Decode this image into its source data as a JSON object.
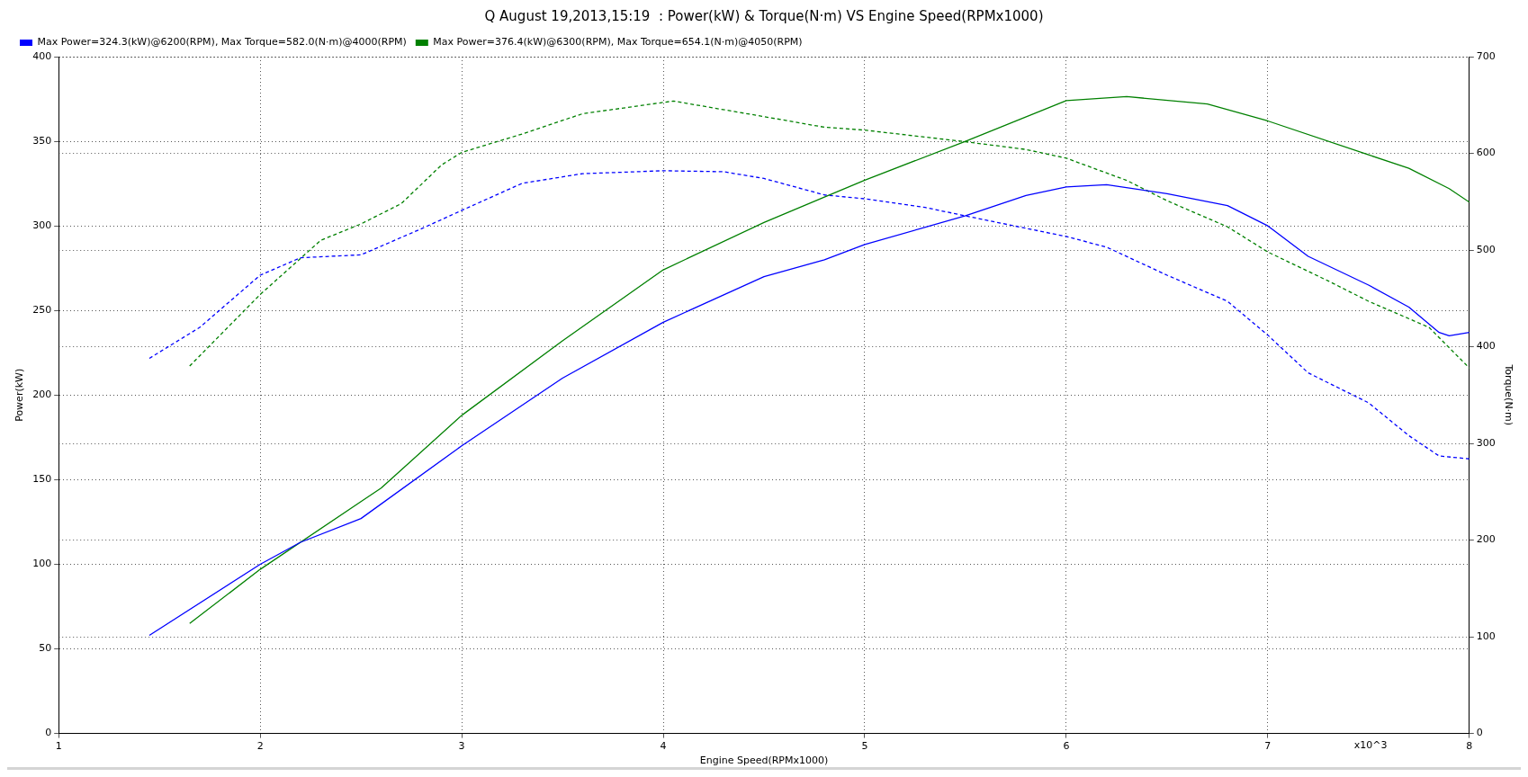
{
  "chart_data": {
    "type": "line",
    "title": "Q August 19,2013,15:19  : Power(kW) & Torque(N·m) VS Engine Speed(RPMx1000)",
    "xlabel": "Engine Speed(RPMx1000)",
    "ylabel": "Power(kW)",
    "y2label": "Torque(N·m)",
    "xlim": [
      1,
      8
    ],
    "xticks": [
      1,
      2,
      3,
      4,
      5,
      6,
      7,
      8
    ],
    "ylim": [
      0,
      400
    ],
    "yticks": [
      0,
      50,
      100,
      150,
      200,
      250,
      300,
      350,
      400
    ],
    "y2lim": [
      0,
      700
    ],
    "y2ticks": [
      0,
      100,
      200,
      300,
      400,
      500,
      600,
      700
    ],
    "grid": true,
    "legend": "top left",
    "marker": "none",
    "annotations": [
      "x10^3"
    ],
    "series": [
      {
        "name": "Max Power=324.3(kW)@6200(RPM), Max Torque=582.0(N·m)@4000(RPM)",
        "color": "#0000ff",
        "line_style": "solid",
        "x": [
          1.45,
          2.0,
          2.2,
          2.5,
          3.0,
          3.5,
          4.0,
          4.5,
          4.8,
          5.0,
          5.5,
          5.8,
          6.0,
          6.2,
          6.5,
          6.8,
          7.0,
          7.2,
          7.5,
          7.7,
          7.85,
          7.9,
          8.0
        ],
        "values": [
          58,
          100,
          113,
          127,
          170,
          210,
          243,
          270,
          280,
          289,
          306,
          318,
          323,
          324.3,
          319,
          312,
          300,
          282,
          265,
          252,
          237,
          235,
          237
        ]
      },
      {
        "name": "Max Power=376.4(kW)@6300(RPM), Max Torque=654.1(N·m)@4050(RPM)",
        "color": "#008000",
        "line_style": "solid",
        "x": [
          1.65,
          2.0,
          2.5,
          2.6,
          3.0,
          3.5,
          4.0,
          4.5,
          4.8,
          5.0,
          5.5,
          6.0,
          6.3,
          6.7,
          7.0,
          7.5,
          7.7,
          7.9,
          8.0
        ],
        "values": [
          65,
          97,
          137,
          145,
          188,
          232,
          274,
          302,
          317,
          327,
          350,
          374,
          376.4,
          372,
          362,
          342,
          334,
          322,
          314
        ]
      },
      {
        "color": "#0000ff",
        "line_style": "dashed",
        "axis": "y2",
        "x": [
          1.45,
          1.7,
          2.0,
          2.2,
          2.5,
          2.8,
          3.0,
          3.3,
          3.6,
          4.0,
          4.3,
          4.5,
          4.8,
          5.0,
          5.3,
          5.6,
          6.0,
          6.2,
          6.5,
          6.8,
          7.0,
          7.2,
          7.5,
          7.7,
          7.85,
          8.0
        ],
        "values": [
          388,
          420,
          474,
          492,
          495,
          522,
          541,
          569,
          579,
          582,
          581,
          574,
          557,
          553,
          544,
          531,
          514,
          503,
          474,
          447,
          412,
          373,
          342,
          308,
          287,
          284
        ]
      },
      {
        "color": "#008000",
        "line_style": "dashed",
        "axis": "y2",
        "x": [
          1.65,
          2.0,
          2.3,
          2.5,
          2.7,
          2.9,
          3.0,
          3.3,
          3.6,
          4.05,
          4.5,
          4.8,
          5.0,
          5.5,
          5.8,
          6.0,
          6.3,
          6.5,
          6.8,
          7.0,
          7.3,
          7.5,
          7.8,
          8.0
        ],
        "values": [
          380,
          454,
          510,
          527,
          548,
          588,
          601,
          620,
          641,
          654.1,
          638,
          627,
          624,
          612,
          604,
          595,
          572,
          551,
          524,
          498,
          468,
          447,
          420,
          378
        ]
      }
    ]
  }
}
